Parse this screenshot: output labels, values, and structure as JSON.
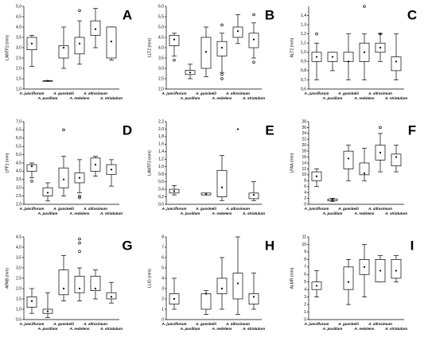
{
  "chart_data": [
    {
      "type": "box",
      "title": "A",
      "y_label": "LANTF2 (mm)",
      "categories": [
        "A. junciflorum",
        "A. pusillum",
        "A. gunckelii",
        "A. redolens",
        "A. altissimum",
        "A. striatulum"
      ],
      "boxes": [
        {
          "min": 2.1,
          "q1": 2.9,
          "q3": 3.5,
          "max": 3.6,
          "mean": 3.2
        },
        {
          "min": 1.4,
          "q1": 1.4,
          "q3": 1.4,
          "max": 1.4,
          "mean": 1.4
        },
        {
          "min": 2.0,
          "q1": 2.5,
          "q3": 3.1,
          "max": 4.0,
          "mean": 3.0
        },
        {
          "min": 2.2,
          "q1": 2.7,
          "q3": 3.5,
          "max": 4.3,
          "mean": 3.2,
          "outliers": [
            4.8
          ]
        },
        {
          "min": 3.0,
          "q1": 3.6,
          "q3": 4.3,
          "max": 4.9,
          "mean": 3.9
        },
        {
          "min": 2.4,
          "q1": 2.5,
          "q3": 4.0,
          "max": 4.0,
          "mean": 3.3
        }
      ],
      "ylim": [
        1,
        5
      ],
      "yticks": [
        {
          "value": 1,
          "label": "1,0"
        },
        {
          "value": 1.5,
          "label": "1,5"
        },
        {
          "value": 2,
          "label": "2,0"
        },
        {
          "value": 2.5,
          "label": "2,5"
        },
        {
          "value": 3,
          "label": "3,0"
        },
        {
          "value": 3.5,
          "label": "3,5"
        },
        {
          "value": 4,
          "label": "4,0"
        },
        {
          "value": 4.5,
          "label": "4,5"
        },
        {
          "value": 5,
          "label": "5,0"
        }
      ]
    },
    {
      "type": "box",
      "title": "B",
      "y_label": "LLT2 (mm)",
      "categories": [
        "A. junciflorum",
        "A. pusillum",
        "A. gunckelii",
        "A. redolens",
        "A. altissimum",
        "A. striatulum"
      ],
      "boxes": [
        {
          "min": 3.6,
          "q1": 4.1,
          "q3": 4.6,
          "max": 4.7,
          "mean": 4.4,
          "outliers": [
            3.4
          ]
        },
        {
          "min": 2.5,
          "q1": 2.7,
          "q3": 2.9,
          "max": 3.2,
          "mean": 2.8
        },
        {
          "min": 2.6,
          "q1": 3.0,
          "q3": 4.5,
          "max": 5.0,
          "mean": 3.8
        },
        {
          "min": 2.8,
          "q1": 3.6,
          "q3": 4.3,
          "max": 4.7,
          "mean": 4.0,
          "outliers": [
            2.5,
            2.7,
            5.1
          ]
        },
        {
          "min": 4.2,
          "q1": 4.5,
          "q3": 5.0,
          "max": 5.6,
          "mean": 4.8
        },
        {
          "min": 3.5,
          "q1": 4.0,
          "q3": 4.7,
          "max": 5.2,
          "mean": 4.4,
          "outliers": [
            3.3,
            5.6
          ]
        }
      ],
      "ylim": [
        2,
        6
      ],
      "yticks": [
        {
          "value": 2,
          "label": "2,0"
        },
        {
          "value": 2.5,
          "label": "2,5"
        },
        {
          "value": 3,
          "label": "3,0"
        },
        {
          "value": 3.5,
          "label": "3,5"
        },
        {
          "value": 4,
          "label": "4,0"
        },
        {
          "value": 4.5,
          "label": "4,5"
        },
        {
          "value": 5,
          "label": "5,0"
        },
        {
          "value": 5.5,
          "label": "5,5"
        },
        {
          "value": 6,
          "label": "6,0"
        }
      ]
    },
    {
      "type": "box",
      "title": "C",
      "y_label": "ALT2 (mm)",
      "categories": [
        "A. junciflorum",
        "A. pusillum",
        "A. gunckelii",
        "A. redolens",
        "A. altissimum",
        "A. striatulum"
      ],
      "boxes": [
        {
          "min": 0.7,
          "q1": 0.9,
          "q3": 1.0,
          "max": 1.1,
          "mean": 0.95,
          "outliers": [
            1.2
          ]
        },
        {
          "min": 0.8,
          "q1": 0.9,
          "q3": 1.0,
          "max": 1.0,
          "mean": 0.95
        },
        {
          "min": 0.7,
          "q1": 0.9,
          "q3": 1.0,
          "max": 1.2,
          "mean": 0.9
        },
        {
          "min": 0.7,
          "q1": 0.9,
          "q3": 1.1,
          "max": 1.2,
          "mean": 1.0,
          "outliers": [
            1.5
          ]
        },
        {
          "min": 0.9,
          "q1": 1.0,
          "q3": 1.1,
          "max": 1.2,
          "mean": 1.05,
          "outliers": [
            1.2
          ]
        },
        {
          "min": 0.7,
          "q1": 0.8,
          "q3": 0.95,
          "max": 1.2,
          "mean": 0.9
        }
      ],
      "ylim": [
        0.6,
        1.5
      ],
      "yticks": [
        {
          "value": 0.6,
          "label": "0,6"
        },
        {
          "value": 0.7,
          "label": "0,7"
        },
        {
          "value": 0.8,
          "label": "0,8"
        },
        {
          "value": 0.9,
          "label": "0,9"
        },
        {
          "value": 1,
          "label": "1,0"
        },
        {
          "value": 1.1,
          "label": "1,1"
        },
        {
          "value": 1.2,
          "label": "1,2"
        },
        {
          "value": 1.3,
          "label": "1,3"
        },
        {
          "value": 1.4,
          "label": "1,4"
        }
      ]
    },
    {
      "type": "box",
      "title": "D",
      "y_label": "LPF1 (mm)",
      "categories": [
        "A. junciflorum",
        "A. pusillum",
        "A. gunckelii",
        "A. redolens",
        "A. altissimum",
        "A. striatulum"
      ],
      "boxes": [
        {
          "min": 3.6,
          "q1": 4.0,
          "q3": 4.4,
          "max": 4.5,
          "mean": 4.3,
          "outliers": [
            3.4
          ]
        },
        {
          "min": 2.2,
          "q1": 2.5,
          "q3": 3.0,
          "max": 3.3,
          "mean": 2.7
        },
        {
          "min": 2.5,
          "q1": 3.0,
          "q3": 4.2,
          "max": 4.9,
          "mean": 3.5,
          "outliers": [
            6.5
          ]
        },
        {
          "min": 2.7,
          "q1": 3.3,
          "q3": 3.9,
          "max": 4.7,
          "mean": 3.6,
          "outliers": [
            2.4,
            2.5
          ]
        },
        {
          "min": 3.7,
          "q1": 4.0,
          "q3": 4.8,
          "max": 4.9,
          "mean": 4.4
        },
        {
          "min": 3.1,
          "q1": 3.8,
          "q3": 4.4,
          "max": 4.7,
          "mean": 4.1
        }
      ],
      "ylim": [
        2,
        7
      ],
      "yticks": [
        {
          "value": 2,
          "label": "2,0"
        },
        {
          "value": 2.5,
          "label": "2,5"
        },
        {
          "value": 3,
          "label": "3,0"
        },
        {
          "value": 3.5,
          "label": "3,5"
        },
        {
          "value": 4,
          "label": "4,0"
        },
        {
          "value": 4.5,
          "label": "4,5"
        },
        {
          "value": 5,
          "label": "5,0"
        },
        {
          "value": 5.5,
          "label": "5,5"
        },
        {
          "value": 6,
          "label": "6,0"
        },
        {
          "value": 6.5,
          "label": "6,5"
        },
        {
          "value": 7,
          "label": "7,0"
        }
      ]
    },
    {
      "type": "box",
      "title": "E",
      "y_label": "LANTF3 (mm)",
      "categories": [
        "A. junciflorum",
        "A. pusillum",
        "A. gunckelii",
        "A. redolens",
        "A. altissimum",
        "A. striatulum"
      ],
      "boxes": [
        {
          "min": 0.25,
          "q1": 0.3,
          "q3": 0.4,
          "max": 0.5,
          "mean": 0.35
        },
        null,
        {
          "min": 0.25,
          "q1": 0.25,
          "q3": 0.3,
          "max": 0.3,
          "mean": 0.27
        },
        {
          "min": 0.1,
          "q1": 0.2,
          "q3": 0.9,
          "max": 1.3,
          "mean": 0.45
        },
        {
          "mean": 2.0
        },
        {
          "min": 0.1,
          "q1": 0.15,
          "q3": 0.3,
          "max": 0.6,
          "mean": 0.25
        }
      ],
      "ylim": [
        0,
        2.2
      ],
      "yticks": [
        {
          "value": 0,
          "label": "0,0"
        },
        {
          "value": 0.2,
          "label": "0,2"
        },
        {
          "value": 0.4,
          "label": "0,4"
        },
        {
          "value": 0.6,
          "label": "0,6"
        },
        {
          "value": 0.8,
          "label": "0,8"
        },
        {
          "value": 1,
          "label": "1,0"
        },
        {
          "value": 1.2,
          "label": "1,2"
        },
        {
          "value": 1.4,
          "label": "1,4"
        },
        {
          "value": 1.6,
          "label": "1,6"
        },
        {
          "value": 1.8,
          "label": "1,8"
        },
        {
          "value": 2,
          "label": "2,0"
        },
        {
          "value": 2.2,
          "label": "2,2"
        }
      ]
    },
    {
      "type": "box",
      "title": "F",
      "y_label": "LFAA (mm)",
      "categories": [
        "A. junciflorum",
        "A. pusillum",
        "A. gunckelii",
        "A. redolens",
        "A. altissimum",
        "A. striatulum"
      ],
      "boxes": [
        {
          "min": 6,
          "q1": 8,
          "q3": 11,
          "max": 12,
          "mean": 9.5
        },
        {
          "min": 1,
          "q1": 1.2,
          "q3": 1.8,
          "max": 2,
          "mean": 1.5
        },
        {
          "min": 8,
          "q1": 12,
          "q3": 18,
          "max": 20,
          "mean": 15.5
        },
        {
          "min": 8,
          "q1": 10,
          "q3": 14,
          "max": 19,
          "mean": 10.5
        },
        {
          "min": 11,
          "q1": 15,
          "q3": 20,
          "max": 24,
          "mean": 17.5,
          "outliers": [
            26
          ]
        },
        {
          "min": 11,
          "q1": 13,
          "q3": 17,
          "max": 20,
          "mean": 16
        }
      ],
      "ylim": [
        0,
        28
      ],
      "yticks": [
        0,
        2,
        4,
        6,
        8,
        10,
        12,
        14,
        16,
        18,
        20,
        22,
        24,
        26,
        28
      ]
    },
    {
      "type": "box",
      "title": "G",
      "y_label": "APAB (mm)",
      "categories": [
        "A. junciflorum",
        "A. pusillum",
        "A. gunckelii",
        "A. redolens",
        "A. altissimum",
        "A. striatulum"
      ],
      "boxes": [
        {
          "min": 0.8,
          "q1": 1.1,
          "q3": 1.6,
          "max": 2.0,
          "mean": 1.4
        },
        {
          "min": 0.6,
          "q1": 0.8,
          "q3": 1.0,
          "max": 1.8,
          "mean": 0.9
        },
        {
          "min": 1.4,
          "q1": 1.7,
          "q3": 2.9,
          "max": 3.6,
          "mean": 2.0
        },
        {
          "min": 1.4,
          "q1": 1.8,
          "q3": 2.6,
          "max": 3.0,
          "mean": 2.0,
          "outliers": [
            3.8,
            4.2,
            4.4
          ]
        },
        {
          "min": 1.5,
          "q1": 1.9,
          "q3": 2.6,
          "max": 2.9,
          "mean": 2.0
        },
        {
          "min": 1.3,
          "q1": 1.5,
          "q3": 1.8,
          "max": 2.3,
          "mean": 1.6
        }
      ],
      "ylim": [
        0.5,
        4.5
      ],
      "yticks": [
        {
          "value": 0.5,
          "label": "0,5"
        },
        {
          "value": 1,
          "label": "1,0"
        },
        {
          "value": 1.5,
          "label": "1,5"
        },
        {
          "value": 2,
          "label": "2,0"
        },
        {
          "value": 2.5,
          "label": "2,5"
        },
        {
          "value": 3,
          "label": "3,0"
        },
        {
          "value": 3.5,
          "label": "3,5"
        },
        {
          "value": 4,
          "label": "4,0"
        },
        {
          "value": 4.5,
          "label": "4,5"
        }
      ]
    },
    {
      "type": "box",
      "title": "H",
      "y_label": "LLIG (mm)",
      "categories": [
        "A. junciflorum",
        "A. pusillum",
        "A. gunckelii",
        "A. redolens",
        "A. altissimum",
        "A. striatulum"
      ],
      "boxes": [
        {
          "min": 1.0,
          "q1": 1.5,
          "q3": 2.5,
          "max": 4.0,
          "mean": 2.0
        },
        null,
        {
          "min": 0.5,
          "q1": 1.0,
          "q3": 2.5,
          "max": 2.8,
          "mean": 2.5
        },
        {
          "min": 1.0,
          "q1": 2.5,
          "q3": 4.0,
          "max": 6.0,
          "mean": 3.0
        },
        {
          "min": 0.5,
          "q1": 2.0,
          "q3": 4.5,
          "max": 8.0,
          "mean": 3.5
        },
        {
          "min": 1.0,
          "q1": 1.5,
          "q3": 2.5,
          "max": 4.5,
          "mean": 2.2
        }
      ],
      "ylim": [
        0,
        8
      ],
      "yticks": [
        0,
        1,
        2,
        3,
        4,
        5,
        6,
        7,
        8
      ]
    },
    {
      "type": "box",
      "title": "I",
      "y_label": "ALMR (mm)",
      "categories": [
        "A. junciflorum",
        "A. pusillum",
        "A. gunckelii",
        "A. redolens",
        "A. altissimum",
        "A. striatulum"
      ],
      "boxes": [
        {
          "min": 3,
          "q1": 4,
          "q3": 5,
          "max": 6.5,
          "mean": 4.5
        },
        null,
        {
          "min": 2,
          "q1": 4,
          "q3": 7,
          "max": 8,
          "mean": 5
        },
        {
          "min": 3,
          "q1": 6,
          "q3": 8,
          "max": 10,
          "mean": 7
        },
        {
          "min": 5,
          "q1": 5,
          "q3": 8,
          "max": 8.5,
          "mean": 6.5
        },
        {
          "min": 5,
          "q1": 5.5,
          "q3": 8,
          "max": 8.5,
          "mean": 6.5
        }
      ],
      "ylim": [
        0,
        11
      ],
      "yticks": [
        0,
        1,
        2,
        3,
        4,
        5,
        6,
        7,
        8,
        9,
        10,
        11
      ]
    }
  ]
}
